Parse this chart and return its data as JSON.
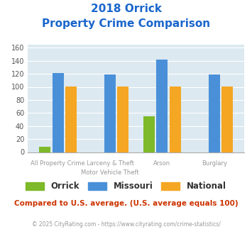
{
  "title_line1": "2018 Orrick",
  "title_line2": "Property Crime Comparison",
  "cat_labels_row1": [
    "All Property Crime",
    "Larceny & Theft",
    "Arson",
    "Burglary"
  ],
  "cat_labels_row2": [
    "",
    "Motor Vehicle Theft",
    "",
    ""
  ],
  "orrick": [
    8,
    0,
    55,
    0
  ],
  "missouri": [
    121,
    119,
    142,
    119
  ],
  "national": [
    101,
    101,
    101,
    101
  ],
  "ylim": [
    0,
    165
  ],
  "yticks": [
    0,
    20,
    40,
    60,
    80,
    100,
    120,
    140,
    160
  ],
  "color_orrick": "#7db928",
  "color_missouri": "#4a90d9",
  "color_national": "#f5a623",
  "bg_color": "#dce9f0",
  "title_color": "#1a66cc",
  "label_color": "#999999",
  "footer_text": "Compared to U.S. average. (U.S. average equals 100)",
  "copyright_text": "© 2025 CityRating.com - https://www.cityrating.com/crime-statistics/",
  "footer_color": "#cc3300",
  "copyright_color": "#999999",
  "legend_labels": [
    "Orrick",
    "Missouri",
    "National"
  ]
}
